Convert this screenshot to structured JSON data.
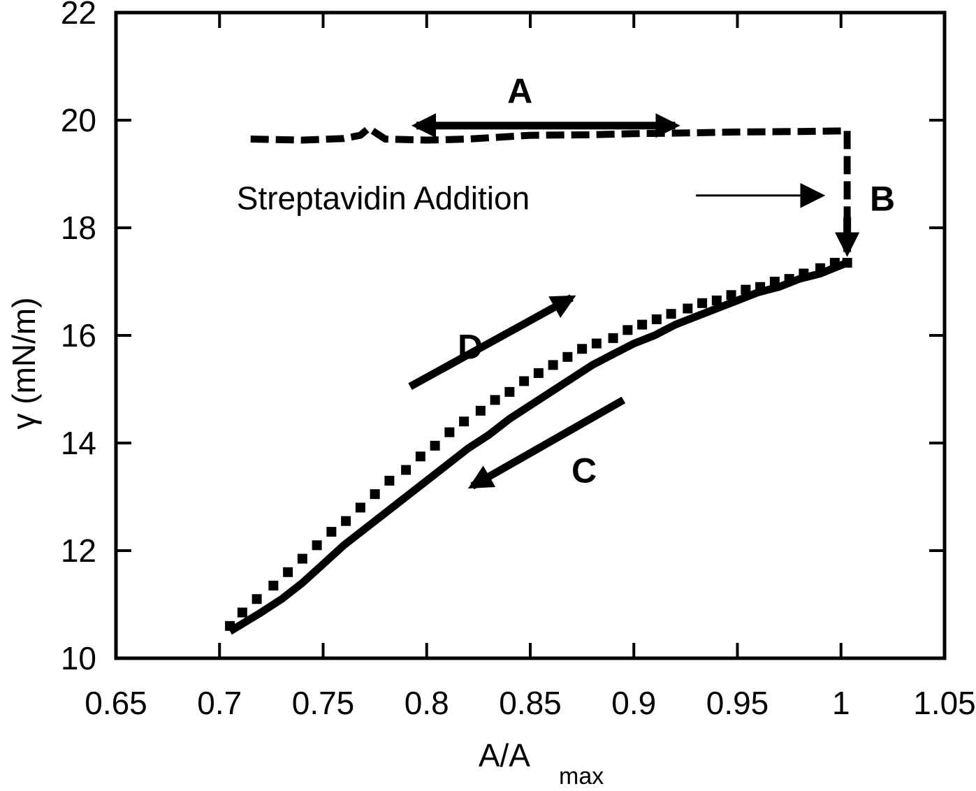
{
  "chart_data": {
    "type": "line",
    "title": "",
    "xlabel": "A/A",
    "xlabel_sub": "max",
    "ylabel": "γ (mN/m)",
    "xlim": [
      0.65,
      1.05
    ],
    "ylim": [
      10,
      22
    ],
    "xticks": [
      "0.65",
      "0.7",
      "0.75",
      "0.8",
      "0.85",
      "0.9",
      "0.95",
      "1",
      "1.05"
    ],
    "yticks": [
      "10",
      "12",
      "14",
      "16",
      "18",
      "20",
      "22"
    ],
    "grid": false,
    "series": [
      {
        "style": "dashed",
        "x": [
          0.715,
          0.74,
          0.76,
          0.768,
          0.772,
          0.78,
          0.8,
          0.82,
          0.85,
          0.88,
          0.9,
          0.92,
          0.95,
          0.98,
          1.0
        ],
        "y": [
          19.65,
          19.63,
          19.66,
          19.72,
          19.85,
          19.65,
          19.63,
          19.65,
          19.72,
          19.73,
          19.75,
          19.76,
          19.78,
          19.79,
          19.8
        ]
      },
      {
        "style": "dashed-vertical",
        "x": [
          1.003,
          1.003
        ],
        "y": [
          19.8,
          17.5
        ]
      },
      {
        "style": "squares",
        "x": [
          0.705,
          0.711,
          0.718,
          0.726,
          0.733,
          0.74,
          0.747,
          0.754,
          0.761,
          0.768,
          0.775,
          0.782,
          0.79,
          0.797,
          0.804,
          0.811,
          0.818,
          0.826,
          0.833,
          0.84,
          0.847,
          0.854,
          0.861,
          0.868,
          0.875,
          0.882,
          0.89,
          0.897,
          0.904,
          0.911,
          0.918,
          0.926,
          0.933,
          0.94,
          0.947,
          0.954,
          0.961,
          0.968,
          0.975,
          0.982,
          0.99,
          0.997,
          1.003
        ],
        "y": [
          10.6,
          10.85,
          11.1,
          11.35,
          11.6,
          11.85,
          12.1,
          12.35,
          12.55,
          12.8,
          13.05,
          13.3,
          13.5,
          13.75,
          13.95,
          14.2,
          14.4,
          14.6,
          14.8,
          14.95,
          15.15,
          15.3,
          15.45,
          15.6,
          15.75,
          15.85,
          15.95,
          16.1,
          16.2,
          16.3,
          16.4,
          16.5,
          16.6,
          16.65,
          16.75,
          16.85,
          16.9,
          17.0,
          17.05,
          17.15,
          17.25,
          17.35,
          17.35
        ]
      },
      {
        "style": "solid",
        "x": [
          0.705,
          0.72,
          0.73,
          0.74,
          0.75,
          0.76,
          0.77,
          0.78,
          0.79,
          0.8,
          0.81,
          0.82,
          0.83,
          0.84,
          0.85,
          0.86,
          0.87,
          0.88,
          0.89,
          0.9,
          0.91,
          0.92,
          0.93,
          0.94,
          0.95,
          0.96,
          0.97,
          0.98,
          0.99,
          1.003
        ],
        "y": [
          10.5,
          10.85,
          11.1,
          11.4,
          11.75,
          12.1,
          12.4,
          12.7,
          13.0,
          13.3,
          13.6,
          13.9,
          14.15,
          14.45,
          14.7,
          14.95,
          15.2,
          15.45,
          15.65,
          15.85,
          16.0,
          16.2,
          16.35,
          16.5,
          16.65,
          16.8,
          16.9,
          17.05,
          17.15,
          17.35
        ]
      }
    ],
    "annotations": [
      {
        "label": "A",
        "x": 0.845,
        "y": 20.55
      },
      {
        "label": "B",
        "x": 1.02,
        "y": 18.55
      },
      {
        "label": "C",
        "x": 0.876,
        "y": 13.5
      },
      {
        "label": "D",
        "x": 0.821,
        "y": 15.8
      },
      {
        "label": "Streptavidin Addition",
        "x": 0.779,
        "y": 18.55
      }
    ],
    "arrows": [
      {
        "name": "A",
        "double": true,
        "x1": 0.795,
        "y1": 19.9,
        "x2": 0.92,
        "y2": 19.9
      },
      {
        "name": "streptavidin",
        "double": false,
        "x1": 0.93,
        "y1": 18.6,
        "x2": 0.99,
        "y2": 18.6
      },
      {
        "name": "B",
        "double": false,
        "x1": 1.003,
        "y1": 18.2,
        "x2": 1.003,
        "y2": 17.55
      },
      {
        "name": "C",
        "double": false,
        "x1": 0.895,
        "y1": 14.8,
        "x2": 0.822,
        "y2": 13.2
      },
      {
        "name": "D",
        "double": false,
        "x1": 0.792,
        "y1": 15.05,
        "x2": 0.87,
        "y2": 16.7
      }
    ]
  }
}
